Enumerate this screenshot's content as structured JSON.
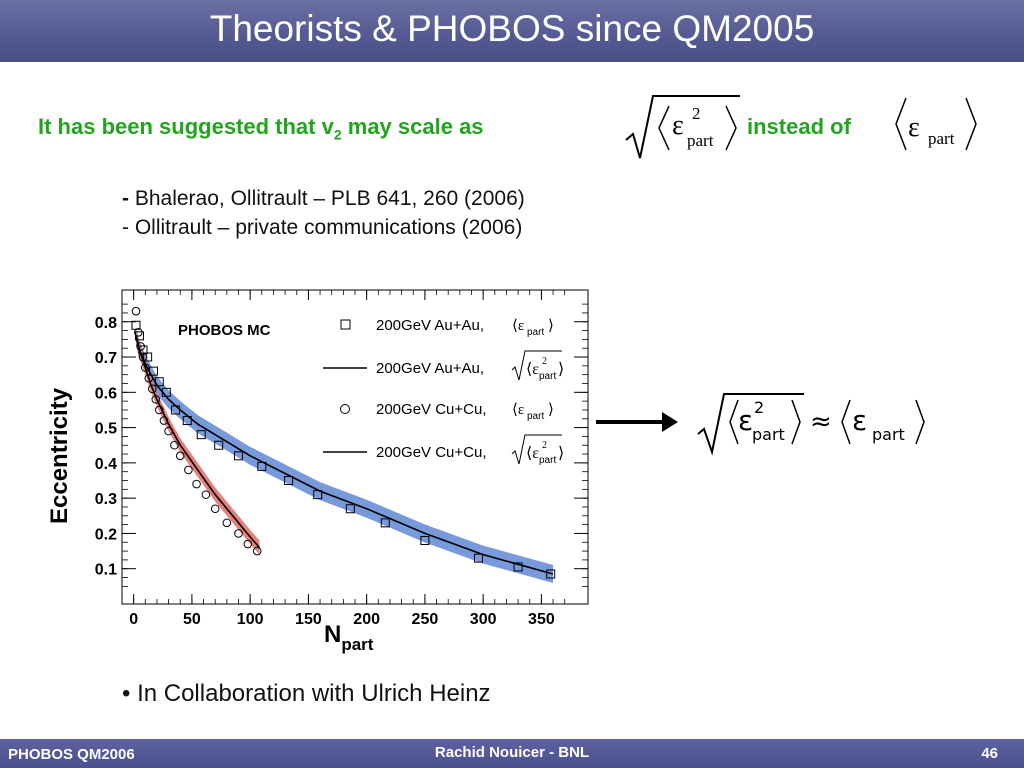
{
  "slide": {
    "title": "Theorists & PHOBOS since QM2005",
    "headline_pre": "It has been suggested that v",
    "headline_sub": "2",
    "headline_post": " may scale  as",
    "headline_mid": "instead of",
    "refs": [
      {
        "dash": "-",
        "text": " Bhalerao, Ollitrault – PLB 641, 260 (2006)"
      },
      {
        "dash": "- ",
        "text": "Ollitrault – private communications (2006)"
      }
    ],
    "bullet": "• In Collaboration with Ulrich Heinz",
    "formula": {
      "epsilon": "ε",
      "part": "part",
      "sup2": "2",
      "approx": "≈"
    }
  },
  "footer": {
    "left": "PHOBOS QM2006",
    "center": "Rachid Nouicer - BNL",
    "right": "46"
  },
  "chart_data": {
    "type": "scatter",
    "title": "PHOBOS MC",
    "xlabel": "N",
    "xlabel_sub": "part",
    "ylabel": "Eccentricity",
    "xlim": [
      -10,
      390
    ],
    "ylim": [
      0.0,
      0.89
    ],
    "xticks": [
      0,
      50,
      100,
      150,
      200,
      250,
      300,
      350
    ],
    "yticks": [
      0.1,
      0.2,
      0.3,
      0.4,
      0.5,
      0.6,
      0.7,
      0.8
    ],
    "grid": false,
    "legend_position": "top-right",
    "legend": [
      {
        "marker": "square",
        "text": "200GeV Au+Au,",
        "math": "<ε_part>"
      },
      {
        "marker": "line",
        "text": "200GeV Au+Au,",
        "math": "sqrt(<ε²_part>)"
      },
      {
        "marker": "circle",
        "text": "200GeV Cu+Cu,",
        "math": "<ε_part>"
      },
      {
        "marker": "line",
        "text": "200GeV Cu+Cu,",
        "math": "sqrt(<ε²_part>)"
      }
    ],
    "colors": {
      "auau_band": "#6a8fd6",
      "cucu_band": "#e2736e",
      "line": "#000000"
    },
    "series": [
      {
        "name": "200GeV Au+Au, <ε_part>",
        "marker": "square",
        "x": [
          2,
          5,
          8,
          12,
          17,
          22,
          28,
          36,
          46,
          58,
          73,
          90,
          110,
          133,
          158,
          186,
          216,
          250,
          296,
          330,
          358
        ],
        "y": [
          0.79,
          0.76,
          0.72,
          0.7,
          0.66,
          0.63,
          0.6,
          0.55,
          0.52,
          0.48,
          0.45,
          0.42,
          0.39,
          0.35,
          0.31,
          0.27,
          0.23,
          0.18,
          0.13,
          0.105,
          0.085
        ]
      },
      {
        "name": "200GeV Au+Au, sqrt(<ε²_part>)",
        "marker": "line",
        "x": [
          2,
          5,
          10,
          15,
          20,
          30,
          40,
          55,
          75,
          100,
          130,
          160,
          200,
          250,
          300,
          360
        ],
        "y": [
          0.76,
          0.72,
          0.68,
          0.65,
          0.62,
          0.58,
          0.55,
          0.51,
          0.47,
          0.42,
          0.37,
          0.32,
          0.27,
          0.2,
          0.14,
          0.085
        ]
      },
      {
        "name": "200GeV Cu+Cu, <ε_part>",
        "marker": "circle",
        "x": [
          2,
          4,
          6,
          8,
          10,
          13,
          16,
          19,
          22,
          26,
          30,
          35,
          40,
          47,
          54,
          62,
          70,
          80,
          90,
          98,
          106
        ],
        "y": [
          0.83,
          0.77,
          0.73,
          0.7,
          0.67,
          0.64,
          0.61,
          0.58,
          0.55,
          0.52,
          0.49,
          0.45,
          0.42,
          0.38,
          0.34,
          0.31,
          0.27,
          0.23,
          0.2,
          0.17,
          0.15
        ]
      },
      {
        "name": "200GeV Cu+Cu, sqrt(<ε²_part>)",
        "marker": "line",
        "x": [
          2,
          5,
          10,
          15,
          20,
          30,
          40,
          55,
          70,
          85,
          100,
          108
        ],
        "y": [
          0.76,
          0.72,
          0.67,
          0.62,
          0.58,
          0.51,
          0.45,
          0.38,
          0.31,
          0.25,
          0.19,
          0.16
        ]
      }
    ]
  }
}
